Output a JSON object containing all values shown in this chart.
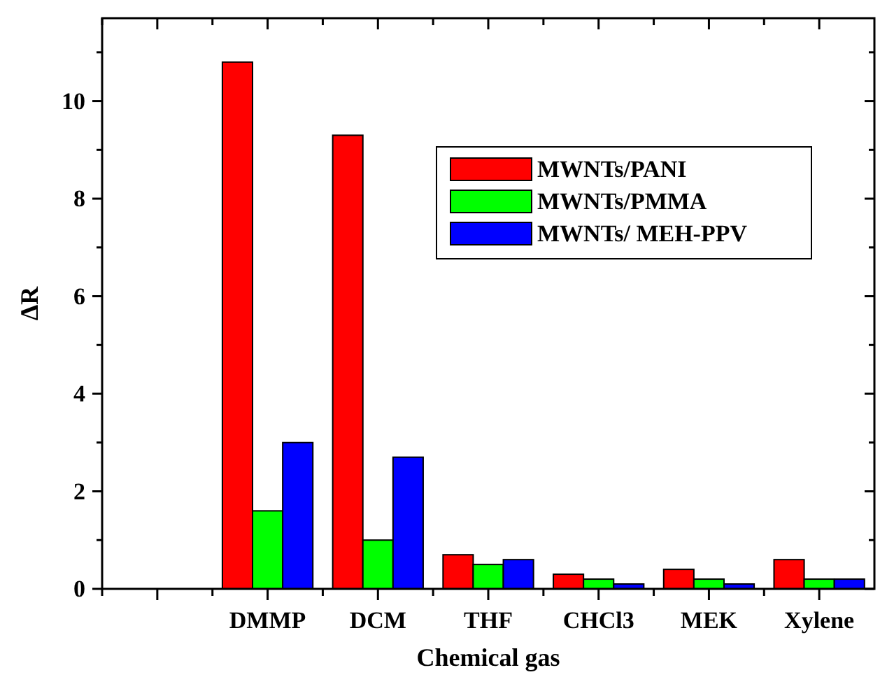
{
  "chart_data": {
    "type": "bar",
    "xlabel": "Chemical gas",
    "ylabel": "ΔR",
    "categories": [
      null,
      "DMMP",
      "DCM",
      "THF",
      "CHCl3",
      "MEK",
      "Xylene"
    ],
    "series": [
      {
        "name": "MWNTs/PANI",
        "color": "#ff0000",
        "values": [
          null,
          10.8,
          9.3,
          0.7,
          0.3,
          0.4,
          0.6
        ]
      },
      {
        "name": "MWNTs/PMMA",
        "color": "#00ff00",
        "values": [
          null,
          1.6,
          1.0,
          0.5,
          0.2,
          0.2,
          0.2
        ]
      },
      {
        "name": "MWNTs/ MEH-PPV",
        "color": "#0000ff",
        "values": [
          null,
          3.0,
          2.7,
          0.6,
          0.1,
          0.1,
          0.2
        ]
      }
    ],
    "ylim": [
      0,
      11.7
    ],
    "yticks": [
      0,
      {
        "value": 1,
        "label": null
      },
      2,
      {
        "value": 3,
        "label": null
      },
      4,
      {
        "value": 5,
        "label": null
      },
      6,
      {
        "value": 7,
        "label": null
      },
      8,
      {
        "value": 9,
        "label": null
      },
      10,
      {
        "value": 11,
        "label": null
      }
    ],
    "grid": false,
    "legend": "top right"
  }
}
